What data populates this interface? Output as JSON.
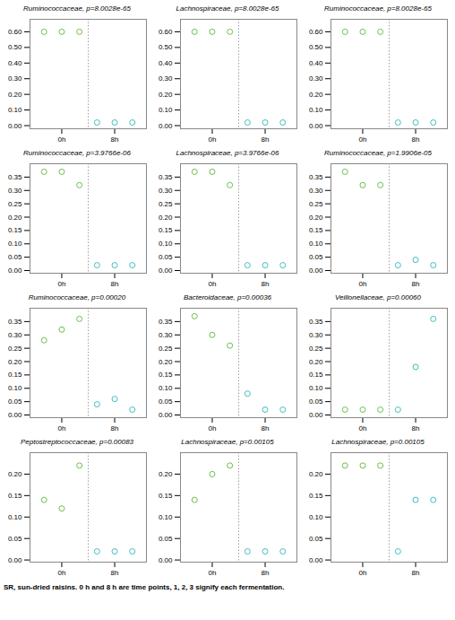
{
  "chart_data": [
    {
      "type": "scatter",
      "title": "Ruminococcaceae, p=8.0028e-65",
      "grid": false,
      "series": [
        {
          "color": "#6DBF4D",
          "marker": "circle",
          "x": [
            1,
            2,
            3
          ],
          "values": [
            0.6,
            0.6,
            0.6
          ]
        },
        {
          "color": "#3DBFBF",
          "marker": "circle",
          "x": [
            4,
            5,
            6
          ],
          "values": [
            0.02,
            0.02,
            0.02
          ]
        }
      ],
      "vline_x": 3.5,
      "xlim": [
        0.2,
        6.8
      ],
      "xticks": [
        {
          "value": 2,
          "label": "0h"
        },
        {
          "value": 5,
          "label": "8h"
        }
      ],
      "ylim": [
        -0.02,
        0.68
      ],
      "yticks": [
        {
          "value": 0.0,
          "label": "0.00"
        },
        {
          "value": 0.1,
          "label": "0.10"
        },
        {
          "value": 0.2,
          "label": "0.20"
        },
        {
          "value": 0.3,
          "label": "0.30"
        },
        {
          "value": 0.4,
          "label": "0.40"
        },
        {
          "value": 0.5,
          "label": "0.50"
        },
        {
          "value": 0.6,
          "label": "0.60"
        }
      ]
    },
    {
      "type": "scatter",
      "title": "Lachnospiraceae, p=8.0028e-65",
      "grid": false,
      "series": [
        {
          "color": "#6DBF4D",
          "marker": "circle",
          "x": [
            1,
            2,
            3
          ],
          "values": [
            0.6,
            0.6,
            0.6
          ]
        },
        {
          "color": "#3DBFBF",
          "marker": "circle",
          "x": [
            4,
            5,
            6
          ],
          "values": [
            0.02,
            0.02,
            0.02
          ]
        }
      ],
      "vline_x": 3.5,
      "xlim": [
        0.2,
        6.8
      ],
      "xticks": [
        {
          "value": 2,
          "label": "0h"
        },
        {
          "value": 5,
          "label": "8h"
        }
      ],
      "ylim": [
        -0.02,
        0.68
      ],
      "yticks": [
        {
          "value": 0.0,
          "label": "0.00"
        },
        {
          "value": 0.1,
          "label": "0.10"
        },
        {
          "value": 0.2,
          "label": "0.20"
        },
        {
          "value": 0.3,
          "label": "0.30"
        },
        {
          "value": 0.4,
          "label": "0.40"
        },
        {
          "value": 0.5,
          "label": "0.50"
        },
        {
          "value": 0.6,
          "label": "0.60"
        }
      ]
    },
    {
      "type": "scatter",
      "title": "Ruminococcaceae, p=8.0028e-65",
      "grid": false,
      "series": [
        {
          "color": "#6DBF4D",
          "marker": "circle",
          "x": [
            1,
            2,
            3
          ],
          "values": [
            0.6,
            0.6,
            0.6
          ]
        },
        {
          "color": "#3DBFBF",
          "marker": "circle",
          "x": [
            4,
            5,
            6
          ],
          "values": [
            0.02,
            0.02,
            0.02
          ]
        }
      ],
      "vline_x": 3.5,
      "xlim": [
        0.2,
        6.8
      ],
      "xticks": [
        {
          "value": 2,
          "label": "0h"
        },
        {
          "value": 5,
          "label": "8h"
        }
      ],
      "ylim": [
        -0.02,
        0.68
      ],
      "yticks": [
        {
          "value": 0.0,
          "label": "0.00"
        },
        {
          "value": 0.1,
          "label": "0.10"
        },
        {
          "value": 0.2,
          "label": "0.20"
        },
        {
          "value": 0.3,
          "label": "0.30"
        },
        {
          "value": 0.4,
          "label": "0.40"
        },
        {
          "value": 0.5,
          "label": "0.50"
        },
        {
          "value": 0.6,
          "label": "0.60"
        }
      ]
    },
    {
      "type": "scatter",
      "title": "Ruminococcaceae, p=3.9766e-06",
      "grid": false,
      "series": [
        {
          "color": "#6DBF4D",
          "marker": "circle",
          "x": [
            1,
            2,
            3
          ],
          "values": [
            0.37,
            0.37,
            0.32
          ]
        },
        {
          "color": "#3DBFBF",
          "marker": "circle",
          "x": [
            4,
            5,
            6
          ],
          "values": [
            0.02,
            0.02,
            0.02
          ]
        }
      ],
      "vline_x": 3.5,
      "xlim": [
        0.2,
        6.8
      ],
      "xticks": [
        {
          "value": 2,
          "label": "0h"
        },
        {
          "value": 5,
          "label": "8h"
        }
      ],
      "ylim": [
        -0.01,
        0.4
      ],
      "yticks": [
        {
          "value": 0.0,
          "label": "0.00"
        },
        {
          "value": 0.05,
          "label": "0.05"
        },
        {
          "value": 0.1,
          "label": "0.10"
        },
        {
          "value": 0.15,
          "label": "0.15"
        },
        {
          "value": 0.2,
          "label": "0.20"
        },
        {
          "value": 0.25,
          "label": "0.25"
        },
        {
          "value": 0.3,
          "label": "0.30"
        },
        {
          "value": 0.35,
          "label": "0.35"
        }
      ]
    },
    {
      "type": "scatter",
      "title": "Lachnospiraceae, p=3.9766e-06",
      "grid": false,
      "series": [
        {
          "color": "#6DBF4D",
          "marker": "circle",
          "x": [
            1,
            2,
            3
          ],
          "values": [
            0.37,
            0.37,
            0.32
          ]
        },
        {
          "color": "#3DBFBF",
          "marker": "circle",
          "x": [
            4,
            5,
            6
          ],
          "values": [
            0.02,
            0.02,
            0.02
          ]
        }
      ],
      "vline_x": 3.5,
      "xlim": [
        0.2,
        6.8
      ],
      "xticks": [
        {
          "value": 2,
          "label": "0h"
        },
        {
          "value": 5,
          "label": "8h"
        }
      ],
      "ylim": [
        -0.01,
        0.4
      ],
      "yticks": [
        {
          "value": 0.0,
          "label": "0.00"
        },
        {
          "value": 0.05,
          "label": "0.05"
        },
        {
          "value": 0.1,
          "label": "0.10"
        },
        {
          "value": 0.15,
          "label": "0.15"
        },
        {
          "value": 0.2,
          "label": "0.20"
        },
        {
          "value": 0.25,
          "label": "0.25"
        },
        {
          "value": 0.3,
          "label": "0.30"
        },
        {
          "value": 0.35,
          "label": "0.35"
        }
      ]
    },
    {
      "type": "scatter",
      "title": "Ruminococcaceae, p=1.9906e-05",
      "grid": false,
      "series": [
        {
          "color": "#6DBF4D",
          "marker": "circle",
          "x": [
            1,
            2,
            3
          ],
          "values": [
            0.37,
            0.32,
            0.32
          ]
        },
        {
          "color": "#3DBFBF",
          "marker": "circle",
          "x": [
            4,
            5,
            6
          ],
          "values": [
            0.02,
            0.04,
            0.02
          ]
        }
      ],
      "vline_x": 3.5,
      "xlim": [
        0.2,
        6.8
      ],
      "xticks": [
        {
          "value": 2,
          "label": "0h"
        },
        {
          "value": 5,
          "label": "8h"
        }
      ],
      "ylim": [
        -0.01,
        0.4
      ],
      "yticks": [
        {
          "value": 0.0,
          "label": "0.00"
        },
        {
          "value": 0.05,
          "label": "0.05"
        },
        {
          "value": 0.1,
          "label": "0.10"
        },
        {
          "value": 0.15,
          "label": "0.15"
        },
        {
          "value": 0.2,
          "label": "0.20"
        },
        {
          "value": 0.25,
          "label": "0.25"
        },
        {
          "value": 0.3,
          "label": "0.30"
        },
        {
          "value": 0.35,
          "label": "0.35"
        }
      ]
    },
    {
      "type": "scatter",
      "title": "Ruminococcaceae, p=0.00020",
      "grid": false,
      "series": [
        {
          "color": "#6DBF4D",
          "marker": "circle",
          "x": [
            1,
            2,
            3
          ],
          "values": [
            0.28,
            0.32,
            0.36
          ]
        },
        {
          "color": "#3DBFBF",
          "marker": "circle",
          "x": [
            4,
            5,
            6
          ],
          "values": [
            0.04,
            0.06,
            0.02
          ]
        }
      ],
      "vline_x": 3.5,
      "xlim": [
        0.2,
        6.8
      ],
      "xticks": [
        {
          "value": 2,
          "label": "0h"
        },
        {
          "value": 5,
          "label": "8h"
        }
      ],
      "ylim": [
        -0.01,
        0.4
      ],
      "yticks": [
        {
          "value": 0.0,
          "label": "0.00"
        },
        {
          "value": 0.05,
          "label": "0.05"
        },
        {
          "value": 0.1,
          "label": "0.10"
        },
        {
          "value": 0.15,
          "label": "0.15"
        },
        {
          "value": 0.2,
          "label": "0.20"
        },
        {
          "value": 0.25,
          "label": "0.25"
        },
        {
          "value": 0.3,
          "label": "0.30"
        },
        {
          "value": 0.35,
          "label": "0.35"
        }
      ]
    },
    {
      "type": "scatter",
      "title": "Bacteroidaceae, p=0.00036",
      "grid": false,
      "series": [
        {
          "color": "#6DBF4D",
          "marker": "circle",
          "x": [
            1,
            2,
            3
          ],
          "values": [
            0.37,
            0.3,
            0.26
          ]
        },
        {
          "color": "#3DBFBF",
          "marker": "circle",
          "x": [
            4,
            5,
            6
          ],
          "values": [
            0.08,
            0.02,
            0.02
          ]
        }
      ],
      "vline_x": 3.5,
      "xlim": [
        0.2,
        6.8
      ],
      "xticks": [
        {
          "value": 2,
          "label": "0h"
        },
        {
          "value": 5,
          "label": "8h"
        }
      ],
      "ylim": [
        -0.01,
        0.4
      ],
      "yticks": [
        {
          "value": 0.0,
          "label": "0.00"
        },
        {
          "value": 0.05,
          "label": "0.05"
        },
        {
          "value": 0.1,
          "label": "0.10"
        },
        {
          "value": 0.15,
          "label": "0.15"
        },
        {
          "value": 0.2,
          "label": "0.20"
        },
        {
          "value": 0.25,
          "label": "0.25"
        },
        {
          "value": 0.3,
          "label": "0.30"
        },
        {
          "value": 0.35,
          "label": "0.35"
        }
      ]
    },
    {
      "type": "scatter",
      "title": "Veillonellaceae, p=0.00060",
      "grid": false,
      "series": [
        {
          "color": "#6DBF4D",
          "marker": "circle",
          "x": [
            1,
            2,
            3
          ],
          "values": [
            0.02,
            0.02,
            0.02
          ]
        },
        {
          "color": "#3DBFBF",
          "marker": "circle",
          "x": [
            4,
            5,
            6
          ],
          "values": [
            0.02,
            0.18,
            0.36
          ]
        }
      ],
      "vline_x": 3.5,
      "xlim": [
        0.2,
        6.8
      ],
      "xticks": [
        {
          "value": 2,
          "label": "0h"
        },
        {
          "value": 5,
          "label": "8h"
        }
      ],
      "ylim": [
        -0.01,
        0.4
      ],
      "yticks": [
        {
          "value": 0.0,
          "label": "0.00"
        },
        {
          "value": 0.05,
          "label": "0.05"
        },
        {
          "value": 0.1,
          "label": "0.10"
        },
        {
          "value": 0.15,
          "label": "0.15"
        },
        {
          "value": 0.2,
          "label": "0.20"
        },
        {
          "value": 0.25,
          "label": "0.25"
        },
        {
          "value": 0.3,
          "label": "0.30"
        },
        {
          "value": 0.35,
          "label": "0.35"
        }
      ]
    },
    {
      "type": "scatter",
      "title": "Peptostreptococcaceae, p=0.00083",
      "grid": false,
      "series": [
        {
          "color": "#6DBF4D",
          "marker": "circle",
          "x": [
            1,
            2,
            3
          ],
          "values": [
            0.14,
            0.12,
            0.22
          ]
        },
        {
          "color": "#3DBFBF",
          "marker": "circle",
          "x": [
            4,
            5,
            6
          ],
          "values": [
            0.02,
            0.02,
            0.02
          ]
        }
      ],
      "vline_x": 3.5,
      "xlim": [
        0.2,
        6.8
      ],
      "xticks": [
        {
          "value": 2,
          "label": "0h"
        },
        {
          "value": 5,
          "label": "8h"
        }
      ],
      "ylim": [
        -0.005,
        0.25
      ],
      "yticks": [
        {
          "value": 0.0,
          "label": "0.00"
        },
        {
          "value": 0.05,
          "label": "0.05"
        },
        {
          "value": 0.1,
          "label": "0.10"
        },
        {
          "value": 0.15,
          "label": "0.15"
        },
        {
          "value": 0.2,
          "label": "0.20"
        }
      ]
    },
    {
      "type": "scatter",
      "title": "Lachnospiraceae, p=0.00105",
      "grid": false,
      "series": [
        {
          "color": "#6DBF4D",
          "marker": "circle",
          "x": [
            1,
            2,
            3
          ],
          "values": [
            0.14,
            0.2,
            0.22
          ]
        },
        {
          "color": "#3DBFBF",
          "marker": "circle",
          "x": [
            4,
            5,
            6
          ],
          "values": [
            0.02,
            0.02,
            0.02
          ]
        }
      ],
      "vline_x": 3.5,
      "xlim": [
        0.2,
        6.8
      ],
      "xticks": [
        {
          "value": 2,
          "label": "0h"
        },
        {
          "value": 5,
          "label": "8h"
        }
      ],
      "ylim": [
        -0.005,
        0.25
      ],
      "yticks": [
        {
          "value": 0.0,
          "label": "0.00"
        },
        {
          "value": 0.05,
          "label": "0.05"
        },
        {
          "value": 0.1,
          "label": "0.10"
        },
        {
          "value": 0.15,
          "label": "0.15"
        },
        {
          "value": 0.2,
          "label": "0.20"
        }
      ]
    },
    {
      "type": "scatter",
      "title": "Lachnospiraceae, p=0.00105",
      "grid": false,
      "series": [
        {
          "color": "#6DBF4D",
          "marker": "circle",
          "x": [
            1,
            2,
            3
          ],
          "values": [
            0.22,
            0.22,
            0.22
          ]
        },
        {
          "color": "#3DBFBF",
          "marker": "circle",
          "x": [
            4,
            5,
            6
          ],
          "values": [
            0.02,
            0.14,
            0.14
          ]
        }
      ],
      "vline_x": 3.5,
      "xlim": [
        0.2,
        6.8
      ],
      "xticks": [
        {
          "value": 2,
          "label": "0h"
        },
        {
          "value": 5,
          "label": "8h"
        }
      ],
      "ylim": [
        -0.005,
        0.25
      ],
      "yticks": [
        {
          "value": 0.0,
          "label": "0.00"
        },
        {
          "value": 0.05,
          "label": "0.05"
        },
        {
          "value": 0.1,
          "label": "0.10"
        },
        {
          "value": 0.15,
          "label": "0.15"
        },
        {
          "value": 0.2,
          "label": "0.20"
        }
      ]
    }
  ],
  "caption": "SR, sun-dried raisins. 0 h and 8 h are time points, 1, 2, 3 signify each fermentation."
}
